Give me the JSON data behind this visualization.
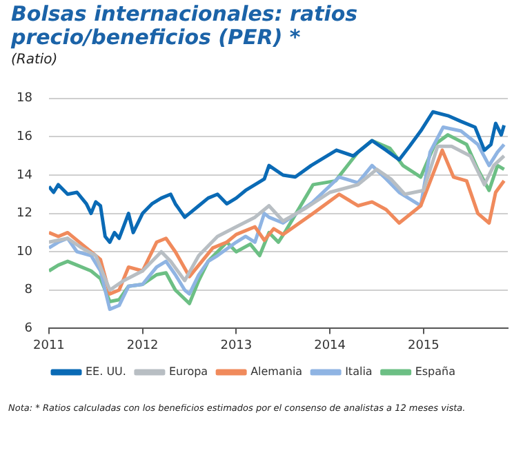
{
  "chart_data": {
    "type": "line",
    "title": "Bolsas internacionales: ratios precio/beneficios (PER) *",
    "subtitle": "(Ratio)",
    "annotations": [
      "Nota: * Ratios calculadas con los beneficios estimados por el consenso de analistas a 12 meses vista."
    ],
    "xlim": [
      2011,
      2015.9
    ],
    "xticks": [
      2011,
      2012,
      2013,
      2014,
      2015
    ],
    "ylim": [
      6,
      18
    ],
    "yticks": [
      6,
      8,
      10,
      12,
      14,
      16,
      18
    ],
    "grid": "y",
    "legend": "bottom",
    "marker": "none",
    "line_style": "solid",
    "series": [
      {
        "name": "EE. UU.",
        "color": "#0a6ab5",
        "x": [
          2011.0,
          2011.05,
          2011.1,
          2011.2,
          2011.3,
          2011.4,
          2011.45,
          2011.5,
          2011.55,
          2011.6,
          2011.65,
          2011.7,
          2011.75,
          2011.85,
          2011.9,
          2012.0,
          2012.1,
          2012.2,
          2012.3,
          2012.35,
          2012.45,
          2012.5,
          2012.6,
          2012.7,
          2012.8,
          2012.9,
          2013.0,
          2013.1,
          2013.2,
          2013.3,
          2013.35,
          2013.5,
          2013.63,
          2013.8,
          2014.07,
          2014.25,
          2014.45,
          2014.6,
          2014.74,
          2014.85,
          2014.97,
          2015.1,
          2015.26,
          2015.4,
          2015.55,
          2015.65,
          2015.72,
          2015.77,
          2015.83,
          2015.86
        ],
        "values": [
          13.4,
          13.1,
          13.5,
          13.0,
          13.1,
          12.5,
          12.0,
          12.6,
          12.4,
          10.8,
          10.5,
          11.0,
          10.7,
          12.0,
          11.0,
          12.0,
          12.5,
          12.8,
          13.0,
          12.5,
          11.8,
          12.0,
          12.4,
          12.8,
          13.0,
          12.5,
          12.8,
          13.2,
          13.5,
          13.8,
          14.5,
          14.0,
          13.9,
          14.5,
          15.3,
          15.0,
          15.8,
          15.3,
          14.8,
          15.5,
          16.3,
          17.3,
          17.1,
          16.8,
          16.5,
          15.3,
          15.6,
          16.7,
          16.1,
          16.6
        ]
      },
      {
        "name": "Europa",
        "color": "#b8bec3",
        "x": [
          2011.0,
          2011.2,
          2011.35,
          2011.5,
          2011.65,
          2011.8,
          2012.0,
          2012.2,
          2012.3,
          2012.45,
          2012.6,
          2012.8,
          2013.0,
          2013.2,
          2013.35,
          2013.5,
          2013.75,
          2014.0,
          2014.3,
          2014.5,
          2014.65,
          2014.8,
          2015.0,
          2015.15,
          2015.3,
          2015.5,
          2015.65,
          2015.75,
          2015.86
        ],
        "values": [
          10.5,
          10.7,
          10.2,
          9.8,
          8.0,
          8.5,
          9.0,
          10.0,
          9.5,
          8.5,
          9.8,
          10.8,
          11.3,
          11.8,
          12.4,
          11.6,
          12.3,
          13.1,
          13.5,
          14.3,
          13.8,
          13.0,
          13.2,
          15.5,
          15.5,
          15.0,
          13.5,
          14.5,
          15.0
        ]
      },
      {
        "name": "Alemania",
        "color": "#f08a5c",
        "x": [
          2011.0,
          2011.1,
          2011.2,
          2011.35,
          2011.45,
          2011.55,
          2011.65,
          2011.75,
          2011.85,
          2012.0,
          2012.15,
          2012.25,
          2012.35,
          2012.5,
          2012.6,
          2012.75,
          2012.9,
          2013.0,
          2013.2,
          2013.3,
          2013.4,
          2013.5,
          2013.82,
          2014.1,
          2014.3,
          2014.45,
          2014.6,
          2014.74,
          2014.97,
          2015.2,
          2015.32,
          2015.46,
          2015.58,
          2015.7,
          2015.77,
          2015.86
        ],
        "values": [
          11.0,
          10.8,
          11.0,
          10.4,
          10.0,
          9.6,
          7.8,
          8.0,
          9.2,
          9.0,
          10.5,
          10.7,
          10.0,
          8.7,
          9.3,
          10.2,
          10.5,
          10.9,
          11.3,
          10.6,
          11.2,
          10.9,
          12.0,
          13.0,
          12.4,
          12.6,
          12.2,
          11.5,
          12.4,
          15.3,
          13.9,
          13.7,
          12.0,
          11.5,
          13.1,
          13.7
        ]
      },
      {
        "name": "Italia",
        "color": "#8fb4e3",
        "x": [
          2011.0,
          2011.1,
          2011.2,
          2011.3,
          2011.45,
          2011.55,
          2011.65,
          2011.75,
          2011.85,
          2012.0,
          2012.15,
          2012.25,
          2012.35,
          2012.45,
          2012.5,
          2012.6,
          2012.7,
          2012.8,
          2013.0,
          2013.1,
          2013.2,
          2013.3,
          2013.35,
          2013.5,
          2013.82,
          2014.1,
          2014.3,
          2014.45,
          2014.6,
          2014.74,
          2014.97,
          2015.07,
          2015.21,
          2015.4,
          2015.58,
          2015.7,
          2015.79,
          2015.86
        ],
        "values": [
          10.2,
          10.5,
          10.7,
          10.0,
          9.8,
          9.0,
          7.0,
          7.2,
          8.2,
          8.3,
          9.2,
          9.5,
          8.8,
          8.0,
          7.8,
          8.8,
          9.5,
          9.8,
          10.5,
          10.8,
          10.5,
          12.0,
          11.8,
          11.5,
          12.6,
          13.9,
          13.6,
          14.5,
          13.8,
          13.1,
          12.4,
          15.2,
          16.5,
          16.3,
          15.6,
          14.5,
          15.2,
          15.6
        ]
      },
      {
        "name": "España",
        "color": "#6cbf84",
        "x": [
          2011.0,
          2011.1,
          2011.2,
          2011.3,
          2011.45,
          2011.55,
          2011.65,
          2011.75,
          2011.85,
          2012.0,
          2012.15,
          2012.25,
          2012.35,
          2012.5,
          2012.6,
          2012.7,
          2012.8,
          2012.9,
          2013.0,
          2013.15,
          2013.25,
          2013.35,
          2013.45,
          2013.53,
          2013.82,
          2014.06,
          2014.3,
          2014.45,
          2014.64,
          2014.78,
          2014.97,
          2015.12,
          2015.26,
          2015.46,
          2015.58,
          2015.7,
          2015.79,
          2015.86
        ],
        "values": [
          9.0,
          9.3,
          9.5,
          9.3,
          9.0,
          8.6,
          7.4,
          7.5,
          8.2,
          8.3,
          8.8,
          8.9,
          8.0,
          7.3,
          8.5,
          9.5,
          10.0,
          10.5,
          10.0,
          10.4,
          9.8,
          11.0,
          10.5,
          11.1,
          13.5,
          13.7,
          15.2,
          15.8,
          15.4,
          14.5,
          13.9,
          15.6,
          16.1,
          15.6,
          14.3,
          13.2,
          14.5,
          14.3
        ]
      }
    ]
  }
}
